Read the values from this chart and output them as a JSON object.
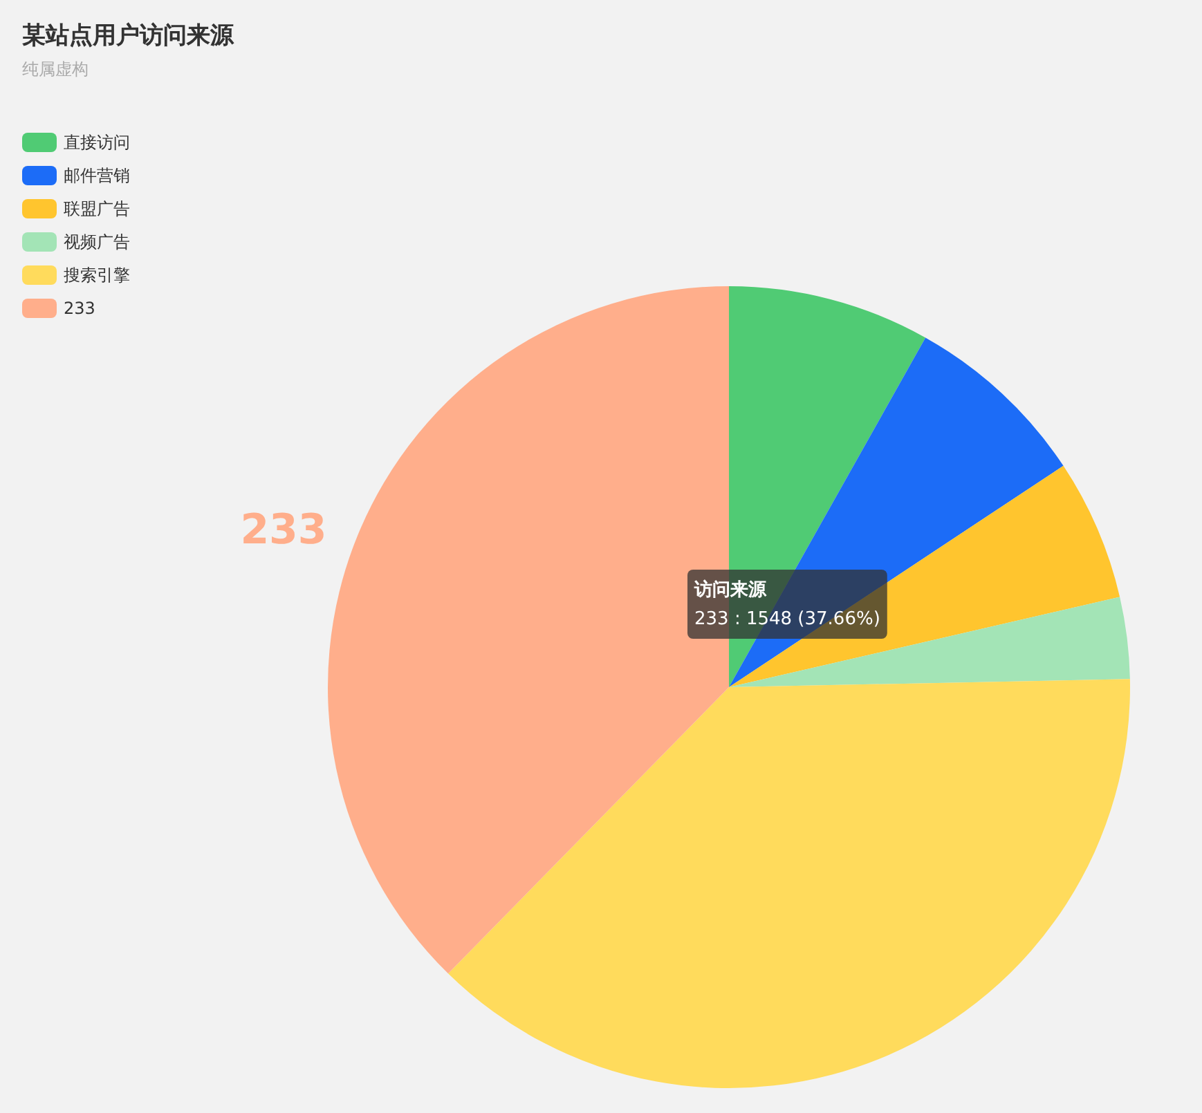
{
  "chart_data": {
    "type": "pie",
    "title": "某站点用户访问来源",
    "subtitle": "纯属虚构",
    "categories": [
      "直接访问",
      "邮件营销",
      "联盟广告",
      "视频广告",
      "搜索引擎",
      "233"
    ],
    "values": [
      8.15,
      7.54,
      5.7,
      3.29,
      37.66,
      37.66
    ],
    "colors": [
      "#50cb74",
      "#1c6cf7",
      "#ffc52e",
      "#a3e4b6",
      "#ffdb5c",
      "#ffae8b"
    ],
    "legend": "top left",
    "annotations": [
      "233",
      "访问来源",
      "233 : 1548 (37.66%)"
    ]
  }
}
